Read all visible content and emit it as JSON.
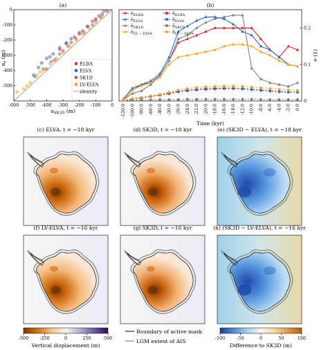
{
  "chart_data": [
    {
      "id": "a",
      "panel_label": "(a)",
      "type": "scatter",
      "xlabel": "u",
      "xlabel_sub": "SK3D",
      "xlabel_unit": "(m)",
      "ylabel": "u",
      "ylabel_sub": "e",
      "ylabel_unit": "(m)",
      "xlim": [
        -600,
        0
      ],
      "ylim": [
        -600,
        0
      ],
      "xticks": [
        -600,
        -500,
        -400,
        -300,
        -200,
        -100,
        0
      ],
      "yticks": [
        -500,
        -400,
        -300,
        -200,
        -100,
        0
      ],
      "series": [
        {
          "name": "ELRA",
          "color": "#e8334a",
          "points": [
            [
              -400,
              -390
            ],
            [
              -350,
              -330
            ],
            [
              -300,
              -270
            ],
            [
              -250,
              -215
            ],
            [
              -200,
              -160
            ],
            [
              -150,
              -110
            ],
            [
              -120,
              -75
            ],
            [
              -100,
              -60
            ],
            [
              -80,
              -40
            ],
            [
              -50,
              -10
            ],
            [
              -30,
              0
            ],
            [
              -320,
              -260
            ],
            [
              -280,
              -220
            ],
            [
              -230,
              -180
            ],
            [
              -180,
              -140
            ]
          ]
        },
        {
          "name": "ELVA",
          "color": "#2f6fc7",
          "points": [
            [
              -480,
              -430
            ],
            [
              -430,
              -350
            ],
            [
              -400,
              -320
            ],
            [
              -360,
              -290
            ],
            [
              -320,
              -250
            ],
            [
              -280,
              -220
            ],
            [
              -250,
              -190
            ],
            [
              -200,
              -150
            ],
            [
              -150,
              -110
            ],
            [
              -100,
              -70
            ],
            [
              -60,
              -30
            ],
            [
              -450,
              -380
            ],
            [
              -380,
              -310
            ]
          ]
        },
        {
          "name": "SK1D",
          "color": "#777777",
          "points": [
            [
              -470,
              -440
            ],
            [
              -420,
              -390
            ],
            [
              -370,
              -340
            ],
            [
              -320,
              -290
            ],
            [
              -270,
              -240
            ],
            [
              -220,
              -190
            ],
            [
              -170,
              -150
            ],
            [
              -120,
              -100
            ],
            [
              -70,
              -50
            ],
            [
              -30,
              -10
            ]
          ]
        },
        {
          "name": "LV-ELVA",
          "color": "#f2a51e",
          "points": [
            [
              -580,
              -540
            ],
            [
              -540,
              -520
            ],
            [
              -500,
              -480
            ],
            [
              -460,
              -430
            ],
            [
              -420,
              -395
            ],
            [
              -380,
              -355
            ],
            [
              -340,
              -320
            ],
            [
              -300,
              -280
            ],
            [
              -260,
              -240
            ],
            [
              -220,
              -200
            ],
            [
              -180,
              -160
            ],
            [
              -140,
              -125
            ],
            [
              -100,
              -85
            ],
            [
              -60,
              -45
            ],
            [
              -20,
              -5
            ],
            [
              -520,
              -500
            ],
            [
              -440,
              -410
            ]
          ]
        }
      ],
      "identity_name": "identity"
    },
    {
      "id": "b",
      "panel_label": "(b)",
      "type": "line",
      "xlabel": "Time (kyr)",
      "ylabel_right": "e (1)",
      "ylim": [
        0,
        0.25
      ],
      "yticks": [
        0,
        0.1,
        0.2
      ],
      "x": [
        "-120.0",
        "-100.0",
        "-80.0",
        "-60.0",
        "-40.0",
        "-30.0",
        "-26.0",
        "-24.0",
        "-22.0",
        "-20.0",
        "-18.0",
        "-16.0",
        "-14.0",
        "-12.0",
        "-10.0",
        "-8.0",
        "-6.0",
        "-4.0",
        "-2.0",
        "0.0"
      ],
      "series": [
        {
          "name": "ELRA",
          "stat": "max",
          "color": "#e22128",
          "dashed": false,
          "values": [
            0.002,
            0.03,
            0.045,
            0.05,
            0.07,
            0.11,
            0.16,
            0.17,
            0.18,
            0.19,
            0.2,
            0.2,
            0.2,
            0.2,
            0.2,
            0.17,
            0.14,
            0.12,
            0.15,
            0.14
          ]
        },
        {
          "name": "ELVA",
          "stat": "max",
          "color": "#2a6cc4",
          "dashed": false,
          "values": [
            0.005,
            0.035,
            0.045,
            0.055,
            0.075,
            0.12,
            0.19,
            0.205,
            0.22,
            0.23,
            0.23,
            0.225,
            0.21,
            0.19,
            0.18,
            0.15,
            0.14,
            0.12,
            0.1,
            0.095
          ]
        },
        {
          "name": "SK1D",
          "stat": "max",
          "color": "#7d7d7d",
          "dashed": false,
          "values": [
            0.003,
            0.02,
            0.028,
            0.045,
            0.07,
            0.11,
            0.17,
            0.18,
            0.2,
            0.215,
            0.225,
            0.23,
            0.235,
            0.235,
            0.09,
            0.06,
            0.05,
            0.045,
            0.04,
            0.05
          ]
        },
        {
          "name": "LV-ELVA",
          "stat": "max",
          "color": "#f4a51b",
          "dashed": false,
          "values": [
            0.003,
            0.03,
            0.042,
            0.05,
            0.065,
            0.1,
            0.12,
            0.125,
            0.13,
            0.135,
            0.14,
            0.15,
            0.155,
            0.155,
            0.15,
            0.135,
            0.125,
            0.11,
            0.1,
            0.095
          ]
        },
        {
          "name": "ELRA",
          "stat": "mean",
          "color": "#e22128",
          "dashed": true,
          "values": [
            0.001,
            0.005,
            0.008,
            0.012,
            0.016,
            0.02,
            0.025,
            0.028,
            0.03,
            0.032,
            0.033,
            0.034,
            0.034,
            0.033,
            0.031,
            0.029,
            0.027,
            0.025,
            0.024,
            0.024
          ]
        },
        {
          "name": "ELVA",
          "stat": "mean",
          "color": "#2a6cc4",
          "dashed": true,
          "values": [
            0.001,
            0.006,
            0.009,
            0.013,
            0.017,
            0.022,
            0.027,
            0.03,
            0.032,
            0.034,
            0.035,
            0.035,
            0.035,
            0.034,
            0.032,
            0.03,
            0.028,
            0.026,
            0.025,
            0.024
          ]
        },
        {
          "name": "SK1D",
          "stat": "mean",
          "color": "#7d7d7d",
          "dashed": true,
          "values": [
            0.001,
            0.002,
            0.003,
            0.003,
            0.004,
            0.004,
            0.004,
            0.005,
            0.005,
            0.005,
            0.005,
            0.005,
            0.005,
            0.005,
            0.005,
            0.004,
            0.004,
            0.004,
            0.004,
            0.004
          ]
        },
        {
          "name": "LV-ELVA",
          "stat": "mean",
          "color": "#f4a51b",
          "dashed": true,
          "values": [
            0.001,
            0.007,
            0.01,
            0.014,
            0.018,
            0.024,
            0.03,
            0.034,
            0.037,
            0.039,
            0.04,
            0.041,
            0.041,
            0.04,
            0.038,
            0.036,
            0.034,
            0.032,
            0.03,
            0.029
          ]
        }
      ],
      "legend_left": [
        "ELRA",
        "ELVA",
        "SK1D",
        "LV − ELVA"
      ],
      "legend_right": [
        "ELRA",
        "ELVA",
        "SK1D",
        "LV − ELVA"
      ]
    }
  ],
  "maps": [
    {
      "id": "c",
      "caption": "(c) ELVA, t = −18 kyr",
      "kind": "displacement"
    },
    {
      "id": "d",
      "caption": "(d) SK3D, t = −18 kyr",
      "kind": "displacement"
    },
    {
      "id": "e",
      "caption": "(e) (SK3D − ELVA), t = −18 kyr",
      "kind": "difference"
    },
    {
      "id": "f",
      "caption": "(f) LV-ELVA, t = −16 kyr",
      "kind": "displacement"
    },
    {
      "id": "g",
      "caption": "(g) SK3D, t = −16 kyr",
      "kind": "displacement"
    },
    {
      "id": "h",
      "caption": "(h) (SK3D − LV-ELVA), t = −16 kyr",
      "kind": "difference"
    }
  ],
  "colorbars": [
    {
      "id": "displacement",
      "label": "Vertical displacement (m)",
      "ticks": [
        "-500",
        "-250",
        "0",
        "250",
        "500"
      ],
      "stops": [
        "#7a3a03",
        "#d4730f",
        "#f6c28d",
        "#f7f5f2",
        "#b5aed6",
        "#6b5aa8",
        "#2d0c55"
      ]
    },
    {
      "id": "difference",
      "label": "Difference to SK3D (m)",
      "ticks": [
        "-100",
        "-50",
        "0",
        "50",
        "100"
      ],
      "stops": [
        "#1a3f9e",
        "#4d8fd6",
        "#a9d0ee",
        "#f5f5ee",
        "#f4d8a0",
        "#e39a44",
        "#b65c14"
      ]
    }
  ],
  "mask_legend": [
    {
      "name": "Boundary of active mask",
      "color": "#000000"
    },
    {
      "name": "LGM extent of AIS",
      "color": "#888888"
    }
  ]
}
